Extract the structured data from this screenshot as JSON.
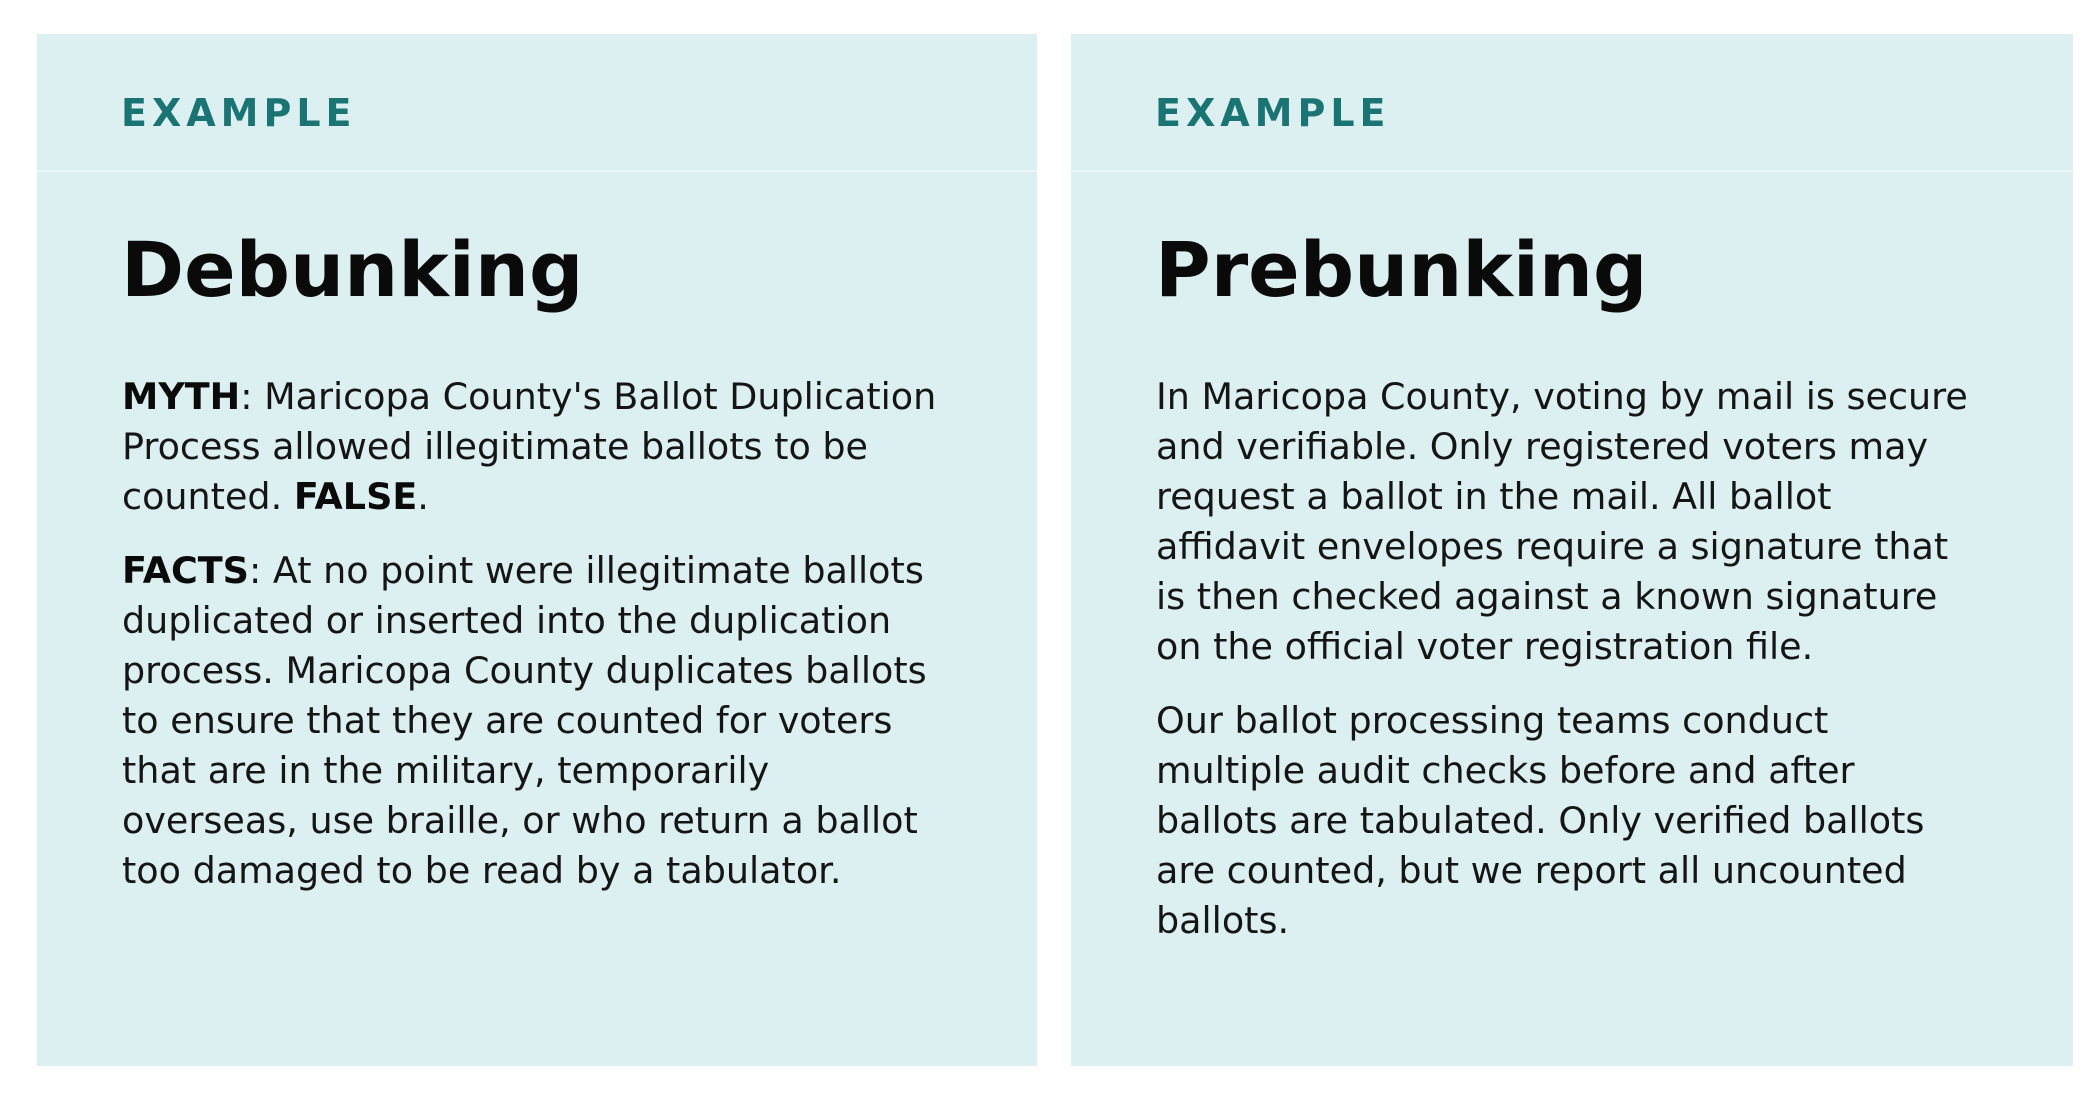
{
  "debunking": {
    "eyebrow": "EXAMPLE",
    "title": "Debunking",
    "myth_label": "MYTH",
    "myth_text": ": Maricopa County's Ballot Duplication Process allowed illegitimate ballots to be counted. ",
    "false_label": "FALSE",
    "false_suffix": ".",
    "facts_label": "FACTS",
    "facts_text": ": At no point were illegitimate ballots duplicated or inserted into the duplication process. Maricopa County duplicates ballots to ensure that they are counted for voters that are in the military, temporarily overseas, use braille, or who return a ballot too damaged to be read by a tabulator."
  },
  "prebunking": {
    "eyebrow": "EXAMPLE",
    "title": "Prebunking",
    "paragraph_1": "In Maricopa County, voting by mail is secure and verifiable. Only registered voters may request a ballot in the mail. All ballot affidavit envelopes require a signature that is then checked against a known signature on the official voter registration file.",
    "paragraph_2": "Our ballot processing teams conduct multiple audit checks before and after ballots are tabulated. Only verified ballots are counted, but we report all uncounted ballots."
  },
  "colors": {
    "card_background": "#dcf0f1",
    "eyebrow": "#1a7474",
    "text": "#151515"
  }
}
